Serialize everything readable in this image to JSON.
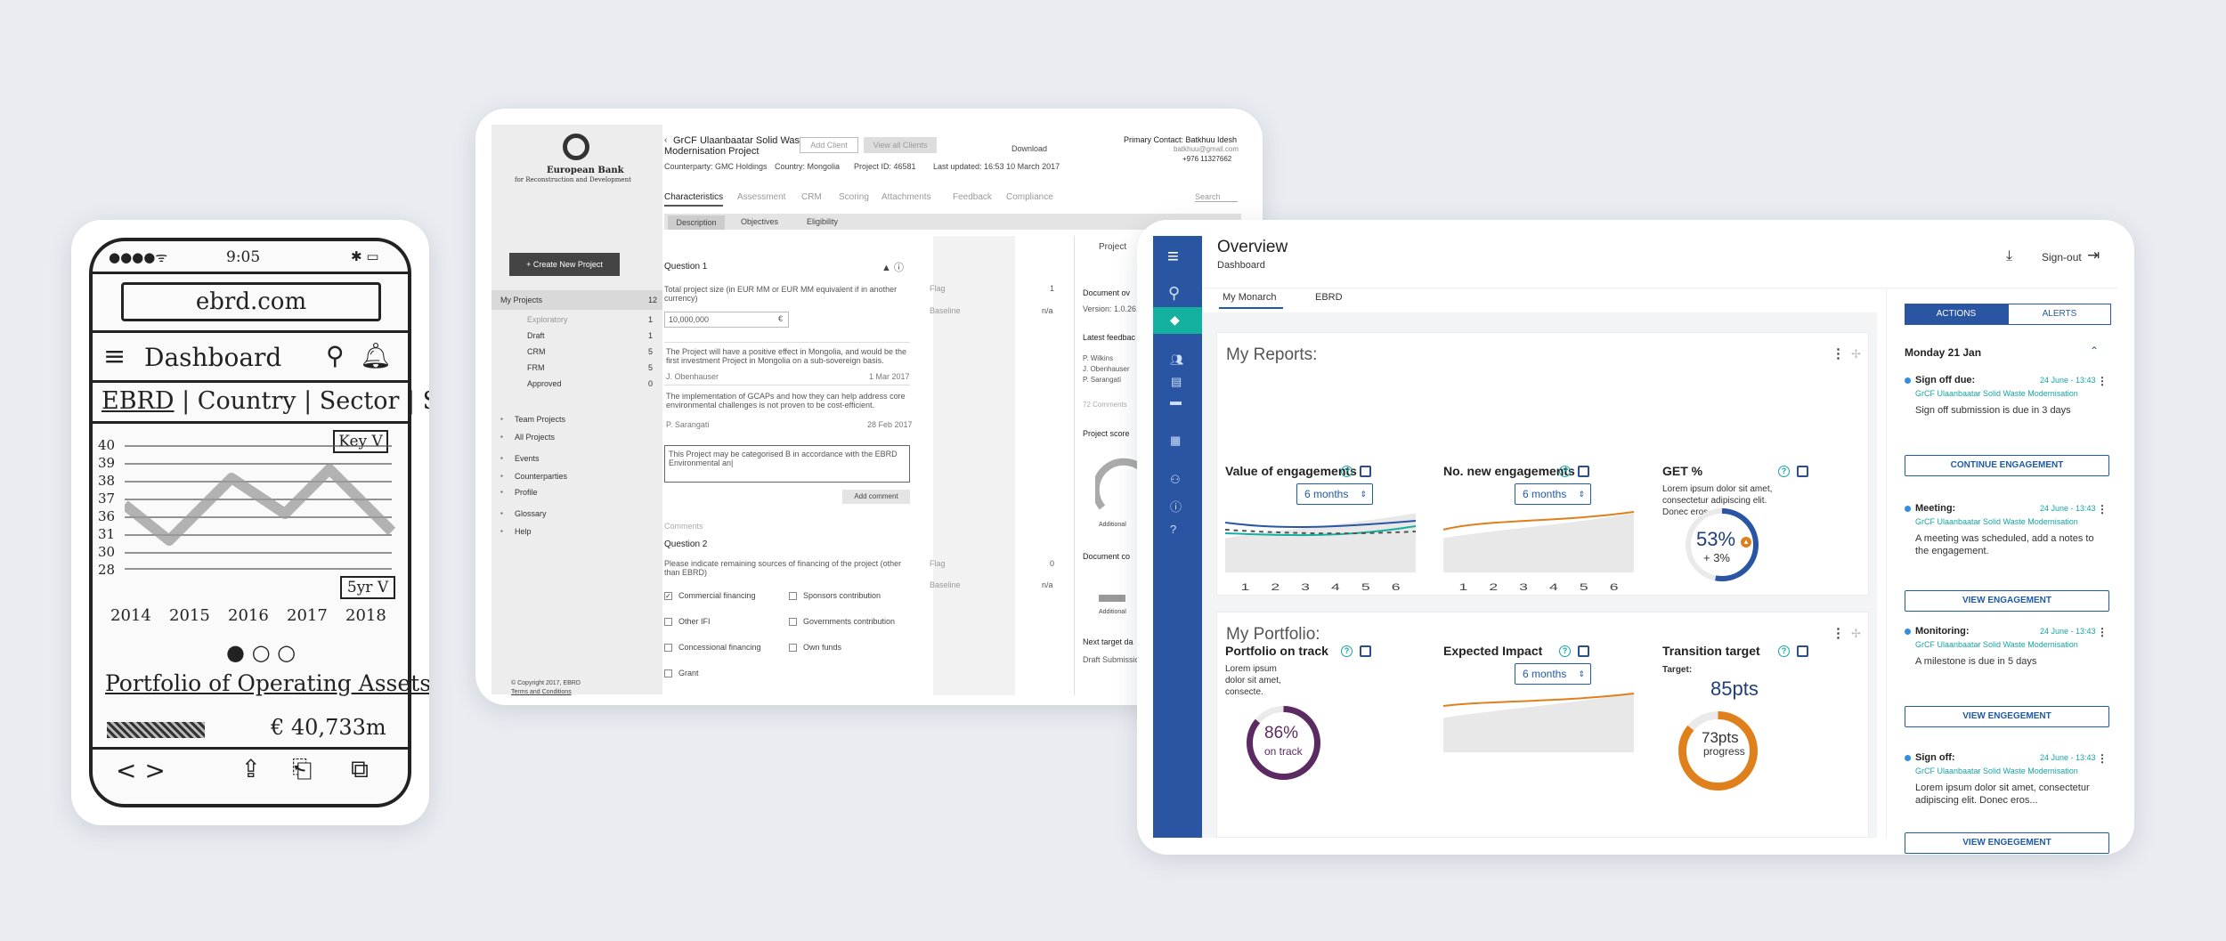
{
  "sketch": {
    "status_time": "9:05",
    "url": "ebrd.com",
    "title": "Dashboard",
    "tabs": [
      "EBRD",
      "Country",
      "Sector",
      "S"
    ],
    "kpi_selector": "Key V",
    "y_ticks": [
      "40",
      "39",
      "38",
      "37",
      "36",
      "31",
      "30",
      "28"
    ],
    "range_selector": "5yr V",
    "years": [
      "2014",
      "2015",
      "2016",
      "2017",
      "2018"
    ],
    "portfolio_label": "Portfolio of Operating Assets",
    "portfolio_value": "€ 40,733m"
  },
  "mock": {
    "bank_name": "European Bank",
    "bank_sub": "for Reconstruction and Development",
    "create_btn": "+ Create New Project",
    "nav": [
      {
        "label": "My Projects",
        "count": "12"
      },
      {
        "label": "Exploratory",
        "count": "1"
      },
      {
        "label": "Draft",
        "count": "1"
      },
      {
        "label": "CRM",
        "count": "5"
      },
      {
        "label": "FRM",
        "count": "5"
      },
      {
        "label": "Approved",
        "count": "0"
      }
    ],
    "nav2": [
      "Team Projects",
      "All Projects",
      "Events",
      "Counterparties",
      "Profile",
      "Glossary",
      "Help"
    ],
    "copyright": "© Copyright 2017, EBRD",
    "terms": "Terms and Conditions",
    "project_title_1": "GrCF Ulaanbaatar Solid Waste",
    "project_title_2": "Modernisation Project",
    "add_client": "Add Client",
    "view_clients": "View all Clients",
    "download": "Download",
    "primary_contact": "Primary Contact: Batkhuu Idesh",
    "contact_email": "batkhuu@gmail.com",
    "contact_phone": "+976 11327662",
    "counterparty": "Counterparty: GMC Holdings",
    "country": "Country: Mongolia",
    "project_id": "Project ID: 46581",
    "last_updated": "Last updated: 16:53 10 March 2017",
    "tabs": [
      "Characteristics",
      "Assessment",
      "CRM",
      "Scoring",
      "Attachments",
      "Feedback",
      "Compliance"
    ],
    "search": "Search",
    "subtabs": [
      "Description",
      "Objectives",
      "Eligibility"
    ],
    "q1_title": "Question 1",
    "q1_text": "Total project size (in EUR MM or EUR MM equivalent if in another currency)",
    "q1_value": "10,000,000",
    "q1_currency": "€",
    "flag_label": "Flag",
    "flag_value": "1",
    "baseline_label": "Baseline",
    "baseline_value": "n/a",
    "comment1": "The Project will have a positive effect in Mongolia, and would be the first investment Project in Mongolia on a sub-sovereign basis.",
    "comment1_author": "J. Obenhauser",
    "comment1_date": "1 Mar 2017",
    "comment2": "The implementation of GCAPs and how they can help address core environmental challenges is not proven to be cost-efficient.",
    "comment2_author": "P. Sarangati",
    "comment2_date": "28 Feb 2017",
    "comment_input": "This Project may be categorised B in accordance with the EBRD Environmental an|",
    "add_comment": "Add comment",
    "comments_label": "Comments",
    "q2_title": "Question 2",
    "q2_text": "Please indicate remaining sources of financing of the project (other than EBRD)",
    "flag2_value": "0",
    "options_left": [
      "Commercial financing",
      "Other IFI",
      "Concessional financing",
      "Grant"
    ],
    "options_right": [
      "Sponsors contribution",
      "Governments contribution",
      "Own funds"
    ],
    "right_tab": "Project",
    "doc_overview": "Document ov",
    "version": "Version: 1.0.26",
    "latest_feedback": "Latest feedbac",
    "feedback_people": [
      "P. Wilkins",
      "J. Obenhauser",
      "P. Sarangati"
    ],
    "comments_count": "72 Comments",
    "project_score": "Project score",
    "additional": "Additional",
    "doc_co": "Document co",
    "additional2": "Additional",
    "next_target": "Next target da",
    "draft_submission": "Draft Submissio"
  },
  "dash": {
    "title": "Overview",
    "subtitle": "Dashboard",
    "signout": "Sign-out",
    "tabs": [
      "My Monarch",
      "EBRD"
    ],
    "reports_title": "My Reports:",
    "portfolio_title": "My Portfolio:",
    "widgets": {
      "value": {
        "title": "Value of engagements",
        "range": "6 months"
      },
      "new": {
        "title": "No. new engagements",
        "range": "6 months"
      },
      "get": {
        "title": "GET %",
        "desc": "Lorem ipsum dolor sit amet, consectetur adipiscing elit. Donec eros...",
        "value": "53%",
        "delta": "+ 3%",
        "pct": 53
      },
      "ontrack": {
        "title": "Portfolio on track",
        "desc": "Lorem ipsum dolor sit amet, consecte.",
        "value": "86%",
        "sub": "on track",
        "pct": 86
      },
      "impact": {
        "title": "Expected Impact",
        "range": "6 months"
      },
      "transition": {
        "title": "Transition target",
        "target_label": "Target:",
        "target": "85pts",
        "progress_value": "73pts",
        "progress_label": "progress",
        "pct": 86
      }
    },
    "x_ticks": [
      "1",
      "2",
      "3",
      "4",
      "5",
      "6"
    ],
    "colors": {
      "navy": "#2a55a2",
      "teal": "#14b0a0",
      "orange": "#e0801c",
      "purple": "#5b2a63",
      "blue": "#1f5aa6"
    },
    "actions_tab": "ACTIONS",
    "alerts_tab": "ALERTS",
    "date_header": "Monday 21 Jan",
    "items": [
      {
        "type": "Sign off due:",
        "date": "24 June - 13:43",
        "project": "GrCF Ulaanbaatar Solid Waste Modernisation",
        "text": "Sign off submission is due in 3 days",
        "button": "CONTINUE ENGAGEMENT"
      },
      {
        "type": "Meeting:",
        "date": "24 June - 13:43",
        "project": "GrCF Ulaanbaatar Solid Waste Modernisation",
        "text": "A meeting was scheduled, add a notes to the engagement.",
        "button": "VIEW ENGAGEMENT"
      },
      {
        "type": "Monitoring:",
        "date": "24 June - 13:43",
        "project": "GrCF Ulaanbaatar Solid Waste Modernisation",
        "text": "A milestone is due in 5 days",
        "button": "VIEW ENGEGEMENT"
      },
      {
        "type": "Sign off:",
        "date": "24 June - 13:43",
        "project": "GrCF Ulaanbaatar Solid Waste Modernisation",
        "text": "Lorem ipsum dolor sit amet, consectetur adipiscing elit. Donec eros...",
        "button": "VIEW ENGEGEMENT"
      }
    ]
  }
}
